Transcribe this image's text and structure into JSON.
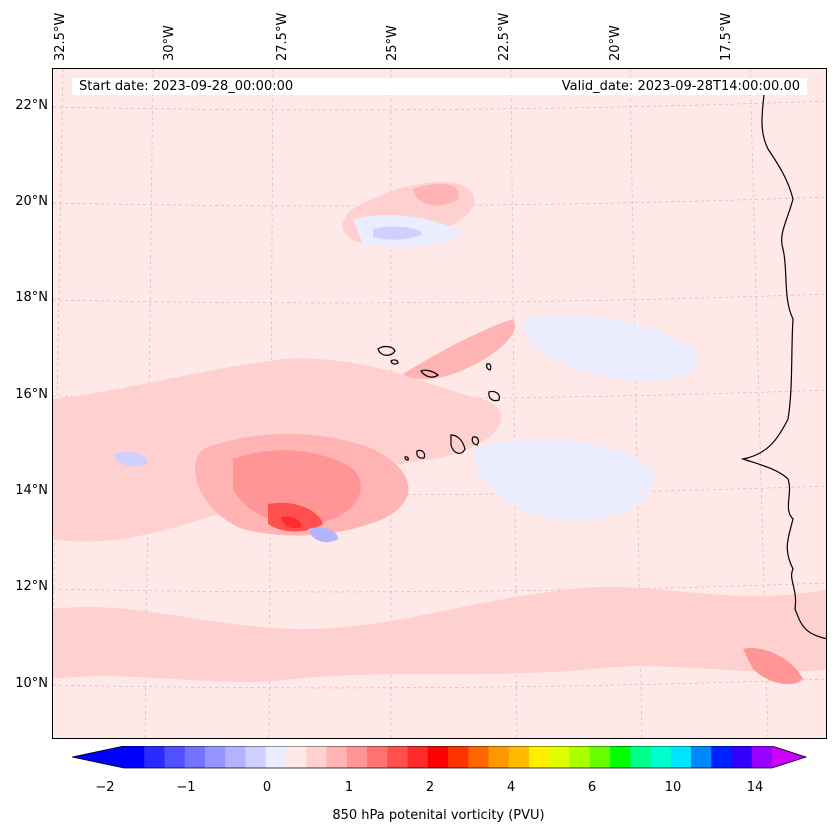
{
  "map": {
    "start_date": "Start date: 2023-09-28_00:00:00",
    "valid_date": "Valid_date: 2023-09-28T14:00:00.00",
    "longitudes": [
      "32.5°W",
      "30°W",
      "27.5°W",
      "25°W",
      "22.5°W",
      "20°W",
      "17.5°W"
    ],
    "latitudes": [
      "22°N",
      "20°N",
      "18°N",
      "16°N",
      "14°N",
      "12°N",
      "10°N"
    ],
    "background_color": "#ffe8e8",
    "coastline_color": "#000000"
  },
  "colorbar": {
    "label": "850 hPa potenital vorticity (PVU)",
    "tick_labels": [
      "−2",
      "−1",
      "0",
      "1",
      "2",
      "4",
      "6",
      "10",
      "14"
    ],
    "colors": [
      "#0000ff",
      "#2a2aff",
      "#5050ff",
      "#7373ff",
      "#9595ff",
      "#b3b3ff",
      "#d0d0ff",
      "#ececff",
      "#ffe8e8",
      "#ffd0d0",
      "#ffb3b3",
      "#ff9595",
      "#ff7373",
      "#ff5050",
      "#ff2a2a",
      "#ff0000",
      "#ff3300",
      "#ff6600",
      "#ff9900",
      "#ffbb00",
      "#ffee00",
      "#ddff00",
      "#aaff00",
      "#66ff00",
      "#00ff00",
      "#00ff88",
      "#00ffcc",
      "#00e5ff",
      "#0088ff",
      "#0022ff",
      "#3300ff",
      "#9900ff"
    ],
    "extend_low_color": "#0000ff",
    "extend_high_color": "#cc00ff"
  }
}
